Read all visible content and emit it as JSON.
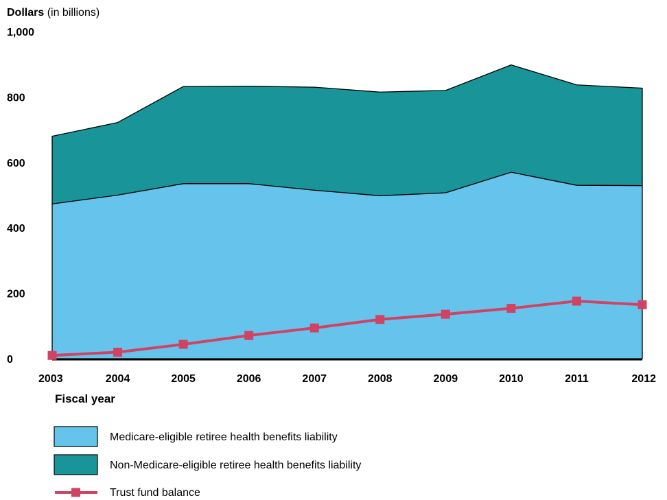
{
  "chart_data": {
    "type": "area",
    "title": "",
    "ylabel_bold": "Dollars",
    "ylabel_rest": " (in billions)",
    "xlabel": "Fiscal year",
    "ylim": [
      0,
      1000
    ],
    "yticks": [
      {
        "value": 0,
        "label": "0"
      },
      {
        "value": 200,
        "label": "200"
      },
      {
        "value": 400,
        "label": "400"
      },
      {
        "value": 600,
        "label": "600"
      },
      {
        "value": 800,
        "label": "800"
      },
      {
        "value": 1000,
        "label": "1,000"
      }
    ],
    "categories": [
      "2003",
      "2004",
      "2005",
      "2006",
      "2007",
      "2008",
      "2009",
      "2010",
      "2011",
      "2012"
    ],
    "grid": false,
    "legend_position": "bottom",
    "series": [
      {
        "name": "Medicare-eligible retiree health benefits liability",
        "kind": "stacked-area",
        "color": "#66c4ec",
        "values": [
          473,
          500,
          535,
          535,
          515,
          498,
          507,
          570,
          530,
          529
        ]
      },
      {
        "name": "Non-Medicare-eligible retiree health benefits liability",
        "kind": "stacked-area",
        "color": "#19959a",
        "values": [
          207,
          222,
          297,
          298,
          315,
          317,
          313,
          328,
          307,
          298
        ]
      },
      {
        "name": "Trust fund balance",
        "kind": "line",
        "color": "#cf4363",
        "values": [
          10,
          20,
          44,
          71,
          94,
          120,
          136,
          154,
          176,
          165
        ]
      }
    ]
  }
}
